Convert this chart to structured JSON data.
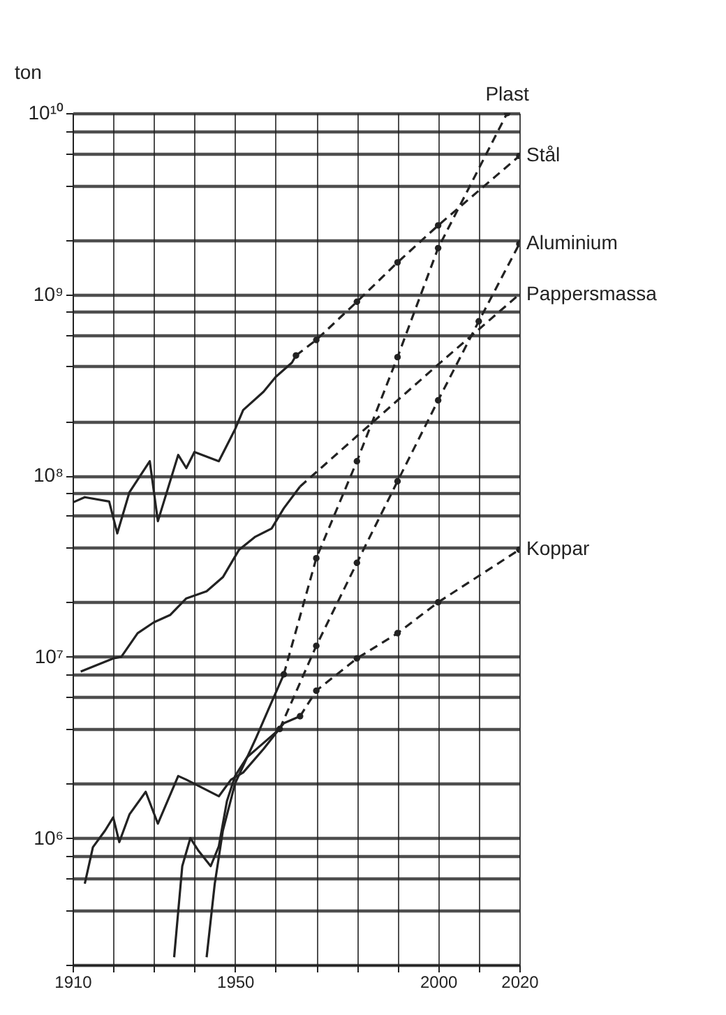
{
  "chart_data": {
    "type": "line",
    "ylabel": "ton",
    "log": true,
    "grid": true,
    "xlim": [
      1910,
      2020
    ],
    "xticks": [
      1910,
      {
        "value": 1920,
        "label": null
      },
      {
        "value": 1930,
        "label": null
      },
      {
        "value": 1940,
        "label": null
      },
      1950,
      {
        "value": 1960,
        "label": null
      },
      {
        "value": 1970,
        "label": null
      },
      {
        "value": 1980,
        "label": null
      },
      {
        "value": 1990,
        "label": null
      },
      2000,
      {
        "value": 2010,
        "label": null
      },
      2020
    ],
    "ylim": [
      200000.0,
      10000000000.0
    ],
    "yticks": [
      {
        "value": 200000.0,
        "label": null
      },
      {
        "value": 400000.0,
        "label": null
      },
      {
        "value": 600000.0,
        "label": null
      },
      {
        "value": 800000.0,
        "label": null
      },
      {
        "value": 1000000.0,
        "label": "10⁶"
      },
      {
        "value": 2000000.0,
        "label": null
      },
      {
        "value": 4000000.0,
        "label": null
      },
      {
        "value": 6000000.0,
        "label": null
      },
      {
        "value": 8000000.0,
        "label": null
      },
      {
        "value": 10000000.0,
        "label": "10⁷"
      },
      {
        "value": 20000000.0,
        "label": null
      },
      {
        "value": 40000000.0,
        "label": null
      },
      {
        "value": 60000000.0,
        "label": null
      },
      {
        "value": 80000000.0,
        "label": null
      },
      {
        "value": 100000000.0,
        "label": "10⁸"
      },
      {
        "value": 200000000.0,
        "label": null
      },
      {
        "value": 400000000.0,
        "label": null
      },
      {
        "value": 600000000.0,
        "label": null
      },
      {
        "value": 800000000.0,
        "label": null
      },
      {
        "value": 1000000000.0,
        "label": "10⁹"
      },
      {
        "value": 2000000000.0,
        "label": null
      },
      {
        "value": 4000000000.0,
        "label": null
      },
      {
        "value": 6000000000.0,
        "label": null
      },
      {
        "value": 8000000000.0,
        "label": null
      },
      {
        "value": 10000000000.0,
        "label": "10¹⁰"
      }
    ],
    "series": [
      {
        "color": "#222222",
        "line_style": "solid",
        "marker": "none",
        "x": [
          1910,
          1913,
          1919,
          1921,
          1924,
          1929,
          1931,
          1936,
          1938,
          1940,
          1946,
          1950,
          1952,
          1957,
          1960,
          1964,
          1965
        ],
        "values": [
          71000000.0,
          76000000.0,
          72000000.0,
          48000000.0,
          81000000.0,
          120000000.0,
          56000000.0,
          130000000.0,
          110000000.0,
          135000000.0,
          120000000.0,
          180000000.0,
          230000000.0,
          290000000.0,
          350000000.0,
          420000000.0,
          460000000.0
        ]
      },
      {
        "name": "Stål",
        "color": "#222222",
        "line_style": "dashed",
        "marker": "circle",
        "x": [
          1965,
          1970,
          1980,
          1990,
          2000,
          2020
        ],
        "values": [
          460000000.0,
          560000000.0,
          910000000.0,
          1500000000.0,
          2400000000.0,
          5800000000.0
        ]
      },
      {
        "color": "#222222",
        "line_style": "solid",
        "marker": "none",
        "x": [
          1912,
          1920,
          1922,
          1926,
          1930,
          1934,
          1938,
          1943,
          1947,
          1951,
          1955,
          1959,
          1962,
          1966
        ],
        "values": [
          8300000.0,
          9800000.0,
          10000000.0,
          13500000.0,
          15500000.0,
          17000000.0,
          21000000.0,
          23000000.0,
          27500000.0,
          39000000.0,
          46000000.0,
          51000000.0,
          66000000.0,
          87000000.0
        ]
      },
      {
        "name": "Pappersmassa",
        "color": "#222222",
        "line_style": "dashed",
        "marker": "none",
        "x": [
          1966,
          1980,
          1990,
          2000,
          2020
        ],
        "values": [
          87000000.0,
          165000000.0,
          260000000.0,
          410000000.0,
          1000000000.0
        ]
      },
      {
        "color": "#222222",
        "line_style": "solid",
        "marker": "none",
        "x": [
          1913,
          1915,
          1918,
          1920,
          1921.5,
          1924,
          1928,
          1931,
          1936,
          1938,
          1946,
          1949,
          1952,
          1957,
          1962,
          1966
        ],
        "values": [
          560000.0,
          890000.0,
          1100000.0,
          1300000.0,
          950000.0,
          1350000.0,
          1800000.0,
          1200000.0,
          2200000.0,
          2100000.0,
          1700000.0,
          2100000.0,
          2300000.0,
          3100000.0,
          4300000.0,
          4700000.0
        ]
      },
      {
        "name": "Koppar",
        "color": "#222222",
        "line_style": "dashed",
        "marker": "circle",
        "x": [
          1966,
          1970,
          1980,
          1990,
          2000,
          2020
        ],
        "values": [
          4700000.0,
          6500000.0,
          9800000.0,
          13500000.0,
          20000000.0,
          39000000.0
        ]
      },
      {
        "color": "#222222",
        "line_style": "solid",
        "marker": "none",
        "x": [
          1935,
          1937,
          1939,
          1941,
          1944,
          1946,
          1948,
          1950,
          1953,
          1956,
          1961
        ],
        "values": [
          220000.0,
          700000.0,
          1000000.0,
          850000.0,
          700000.0,
          900000.0,
          1600000.0,
          2200000.0,
          2800000.0,
          3200000.0,
          4000000.0
        ]
      },
      {
        "name": "Aluminium",
        "color": "#222222",
        "line_style": "dashed",
        "marker": "circle",
        "x": [
          1961,
          1970,
          1980,
          1990,
          2000,
          2010,
          2020
        ],
        "values": [
          4000000.0,
          11500000.0,
          33000000.0,
          93000000.0,
          260000000.0,
          710000000.0,
          1900000000.0
        ]
      },
      {
        "color": "#222222",
        "line_style": "solid",
        "marker": "none",
        "x": [
          1943,
          1945,
          1947,
          1950,
          1955,
          1958,
          1962
        ],
        "values": [
          220000.0,
          560000.0,
          1100000.0,
          2000000.0,
          3500000.0,
          5000000.0,
          8000000.0
        ]
      },
      {
        "name": "Plast",
        "color": "#222222",
        "line_style": "dashed",
        "marker": "circle",
        "x": [
          1962,
          1970,
          1980,
          1990,
          2000,
          2017
        ],
        "values": [
          8000000.0,
          35000000.0,
          120000000.0,
          450000000.0,
          1800000000.0,
          10000000000.0
        ]
      }
    ]
  }
}
